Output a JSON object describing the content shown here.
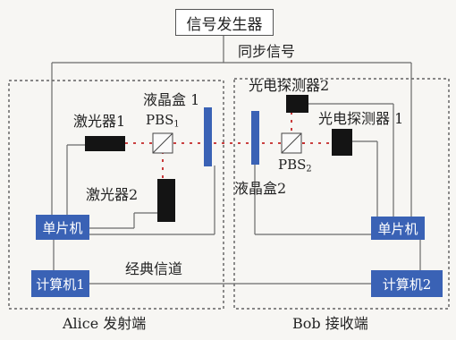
{
  "diagram": {
    "signal_generator": "信号发生器",
    "sync_signal": "同步信号",
    "laser_1": "激光器1",
    "laser_2": "激光器2",
    "pbs1_base": "PBS",
    "pbs1_sub": "1",
    "lc_box_1": "液晶盒 1",
    "photodetector_2": "光电探测器2",
    "photodetector_1": "光电探测器 1",
    "pbs2_base": "PBS",
    "pbs2_sub": "2",
    "lc_box_2": "液晶盒2",
    "mcu_alice": "单片机",
    "mcu_bob": "单片机",
    "computer_1": "计算机1",
    "computer_2": "计算机2",
    "classical_channel": "经典信道",
    "alice_label": "Alice 发射端",
    "bob_label": "Bob 接收端"
  },
  "colors": {
    "component_blue": "#3a62b5",
    "device_black": "#141414",
    "beam_red": "#c42727",
    "wire_gray": "#6a6a6a"
  }
}
